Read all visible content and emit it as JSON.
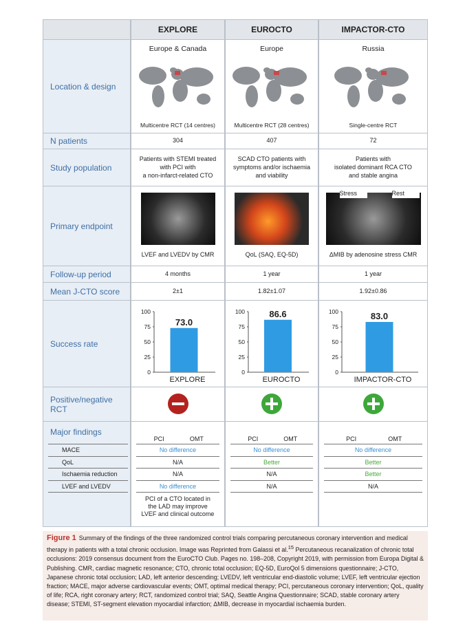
{
  "header": {
    "columns": [
      "EXPLORE",
      "EUROCTO",
      "IMPACTOR-CTO"
    ]
  },
  "row_labels": [
    "Location & design",
    "N patients",
    "Study population",
    "Primary endpoint",
    "Follow-up period",
    "Mean J-CTO score",
    "Success rate",
    "Positive/negative RCT",
    "Major findings"
  ],
  "findings_rows": [
    "MACE",
    "QoL",
    "Ischaemia reduction",
    "LVEF and LVEDV"
  ],
  "trials": [
    {
      "region": "Europe & Canada",
      "design": "Multicentre RCT (14 centres)",
      "n": "304",
      "population": [
        "Patients with STEMI treated",
        "with PCI with",
        "a non-infarct-related CTO"
      ],
      "endpoint": "LVEF and LVEDV by CMR",
      "followup": "4 months",
      "jcto": "2±1",
      "arms": [
        "PCI",
        "OMT"
      ],
      "findings": [
        {
          "text": "No difference",
          "color": "#3a8fd0"
        },
        {
          "text": "N/A",
          "color": "#222222"
        },
        {
          "text": "N/A",
          "color": "#222222"
        },
        {
          "text": "No difference",
          "color": "#3a8fd0"
        }
      ],
      "note": [
        "PCI of a CTO located in",
        "the LAD may improve",
        "LVEF and clinical outcome"
      ]
    },
    {
      "region": "Europe",
      "design": "Multicentre RCT (28 centres)",
      "n": "407",
      "population": [
        "SCAD CTO patients with",
        "symptoms and/or ischaemia",
        "and viability"
      ],
      "endpoint": "QoL (SAQ, EQ-5D)",
      "followup": "1 year",
      "jcto": "1.82±1.07",
      "arms": [
        "PCI",
        "OMT"
      ],
      "findings": [
        {
          "text": "No difference",
          "color": "#3a8fd0"
        },
        {
          "text": "Better",
          "color": "#4aaa3a"
        },
        {
          "text": "N/A",
          "color": "#222222"
        },
        {
          "text": "N/A",
          "color": "#222222"
        }
      ]
    },
    {
      "region": "Russia",
      "design": "Single-centre RCT",
      "n": "72",
      "population": [
        "Patients with",
        "isolated dominant RCA CTO",
        "and stable angina"
      ],
      "endpoint": "ΔMIB by adenosine stress CMR",
      "endpoint_image_labels": [
        "Stress",
        "Rest"
      ],
      "followup": "1 year",
      "jcto": "1.92±0.86",
      "arms": [
        "PCI",
        "OMT"
      ],
      "findings": [
        {
          "text": "No difference",
          "color": "#3a8fd0"
        },
        {
          "text": "Better",
          "color": "#4aaa3a"
        },
        {
          "text": "Better",
          "color": "#4aaa3a"
        },
        {
          "text": "N/A",
          "color": "#222222"
        }
      ]
    }
  ],
  "chart_data": [
    {
      "type": "bar",
      "categories": [
        "EXPLORE"
      ],
      "values": [
        73.0
      ],
      "value_labels": [
        "73.0"
      ],
      "ylim": [
        0,
        100
      ],
      "yticks": [
        0,
        25,
        50,
        75,
        100
      ],
      "color": "#2f9be3"
    },
    {
      "type": "bar",
      "categories": [
        "EUROCTO"
      ],
      "values": [
        86.6
      ],
      "value_labels": [
        "86.6"
      ],
      "ylim": [
        0,
        100
      ],
      "yticks": [
        0,
        25,
        50,
        75,
        100
      ],
      "color": "#2f9be3"
    },
    {
      "type": "bar",
      "categories": [
        "IMPACTOR-CTO"
      ],
      "values": [
        83.0
      ],
      "value_labels": [
        "83.0"
      ],
      "ylim": [
        0,
        100
      ],
      "yticks": [
        0,
        25,
        50,
        75,
        100
      ],
      "color": "#2f9be3"
    }
  ],
  "caption": {
    "label": "Figure 1",
    "text_before": "Summary of the findings of the three randomized control trials comparing percutaneous coronary intervention and medical therapy in patients with a total chronic occlusion. Image was Reprinted from Galassi et al.",
    "sup": "15",
    "text_after": " Percutaneous recanalization of chronic total occlusions: 2019 consensus document from the EuroCTO Club. Pages no. 198–208, Copyright 2019, with permission from Europa Digital & Publishing. CMR, cardiac magnetic resonance; CTO, chronic total occlusion; EQ-5D, EuroQol 5 dimensions questionnaire; J-CTO, Japanese chronic total occlusion; LAD, left anterior descending; LVEDV, left ventricular end-diastolic volume; LVEF, left ventricular ejection fraction; MACE, major adverse cardiovascular events; OMT, optimal medical therapy; PCI, percutaneous coronary intervention; QoL, quality of life; RCA, right coronary artery; RCT, randomized control trial; SAQ, Seattle Angina Questionnaire; SCAD, stable coronary artery disease; STEMI, ST-segment elevation myocardial infarction; ΔMIB, decrease in myocardial ischaemia burden."
  }
}
